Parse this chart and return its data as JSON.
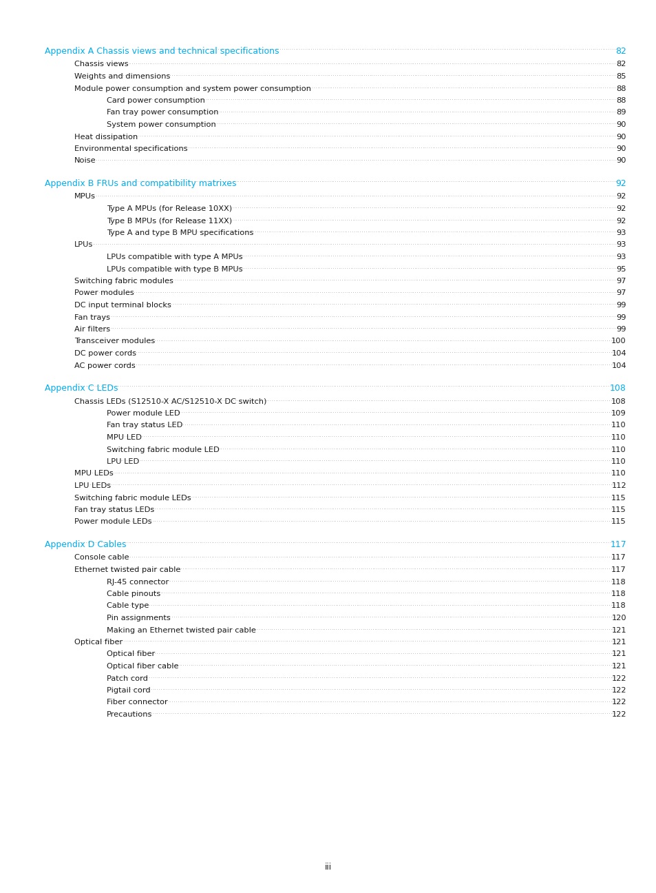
{
  "bg_color": "#ffffff",
  "text_color": "#1a1a1a",
  "heading_color": "#00aeef",
  "dot_color": "#555555",
  "page_footer": "iii",
  "entries": [
    {
      "text": "Appendix A Chassis views and technical specifications",
      "page": "82",
      "level": 0,
      "is_heading": true
    },
    {
      "text": "Chassis views",
      "page": "82",
      "level": 1,
      "is_heading": false
    },
    {
      "text": "Weights and dimensions",
      "page": "85",
      "level": 1,
      "is_heading": false
    },
    {
      "text": "Module power consumption and system power consumption",
      "page": "88",
      "level": 1,
      "is_heading": false
    },
    {
      "text": "Card power consumption",
      "page": "88",
      "level": 2,
      "is_heading": false
    },
    {
      "text": "Fan tray power consumption",
      "page": "89",
      "level": 2,
      "is_heading": false
    },
    {
      "text": "System power consumption",
      "page": "90",
      "level": 2,
      "is_heading": false
    },
    {
      "text": "Heat dissipation",
      "page": "90",
      "level": 1,
      "is_heading": false
    },
    {
      "text": "Environmental specifications",
      "page": "90",
      "level": 1,
      "is_heading": false
    },
    {
      "text": "Noise",
      "page": "90",
      "level": 1,
      "is_heading": false
    },
    {
      "text": "",
      "page": "",
      "level": -1,
      "is_heading": false
    },
    {
      "text": "Appendix B FRUs and compatibility matrixes",
      "page": "92",
      "level": 0,
      "is_heading": true
    },
    {
      "text": "MPUs",
      "page": "92",
      "level": 1,
      "is_heading": false
    },
    {
      "text": "Type A MPUs (for Release 10XX)",
      "page": "92",
      "level": 2,
      "is_heading": false
    },
    {
      "text": "Type B MPUs (for Release 11XX)",
      "page": "92",
      "level": 2,
      "is_heading": false
    },
    {
      "text": "Type A and type B MPU specifications",
      "page": "93",
      "level": 2,
      "is_heading": false
    },
    {
      "text": "LPUs",
      "page": "93",
      "level": 1,
      "is_heading": false
    },
    {
      "text": "LPUs compatible with type A MPUs",
      "page": "93",
      "level": 2,
      "is_heading": false
    },
    {
      "text": "LPUs compatible with type B MPUs",
      "page": "95",
      "level": 2,
      "is_heading": false
    },
    {
      "text": "Switching fabric modules",
      "page": "97",
      "level": 1,
      "is_heading": false
    },
    {
      "text": "Power modules",
      "page": "97",
      "level": 1,
      "is_heading": false
    },
    {
      "text": "DC input terminal blocks",
      "page": "99",
      "level": 1,
      "is_heading": false
    },
    {
      "text": "Fan trays",
      "page": "99",
      "level": 1,
      "is_heading": false
    },
    {
      "text": "Air filters",
      "page": "99",
      "level": 1,
      "is_heading": false
    },
    {
      "text": "Transceiver modules",
      "page": "100",
      "level": 1,
      "is_heading": false
    },
    {
      "text": "DC power cords",
      "page": "104",
      "level": 1,
      "is_heading": false
    },
    {
      "text": "AC power cords",
      "page": "104",
      "level": 1,
      "is_heading": false
    },
    {
      "text": "",
      "page": "",
      "level": -1,
      "is_heading": false
    },
    {
      "text": "Appendix C LEDs",
      "page": "108",
      "level": 0,
      "is_heading": true
    },
    {
      "text": "Chassis LEDs (S12510-X AC/S12510-X DC switch)",
      "page": "108",
      "level": 1,
      "is_heading": false
    },
    {
      "text": "Power module LED",
      "page": "109",
      "level": 2,
      "is_heading": false
    },
    {
      "text": "Fan tray status LED",
      "page": "110",
      "level": 2,
      "is_heading": false
    },
    {
      "text": "MPU LED",
      "page": "110",
      "level": 2,
      "is_heading": false
    },
    {
      "text": "Switching fabric module LED",
      "page": "110",
      "level": 2,
      "is_heading": false
    },
    {
      "text": "LPU LED",
      "page": "110",
      "level": 2,
      "is_heading": false
    },
    {
      "text": "MPU LEDs",
      "page": "110",
      "level": 1,
      "is_heading": false
    },
    {
      "text": "LPU LEDs",
      "page": "112",
      "level": 1,
      "is_heading": false
    },
    {
      "text": "Switching fabric module LEDs",
      "page": "115",
      "level": 1,
      "is_heading": false
    },
    {
      "text": "Fan tray status LEDs",
      "page": "115",
      "level": 1,
      "is_heading": false
    },
    {
      "text": "Power module LEDs",
      "page": "115",
      "level": 1,
      "is_heading": false
    },
    {
      "text": "",
      "page": "",
      "level": -1,
      "is_heading": false
    },
    {
      "text": "Appendix D Cables",
      "page": "117",
      "level": 0,
      "is_heading": true
    },
    {
      "text": "Console cable",
      "page": "117",
      "level": 1,
      "is_heading": false
    },
    {
      "text": "Ethernet twisted pair cable",
      "page": "117",
      "level": 1,
      "is_heading": false
    },
    {
      "text": "RJ-45 connector",
      "page": "118",
      "level": 2,
      "is_heading": false
    },
    {
      "text": "Cable pinouts",
      "page": "118",
      "level": 2,
      "is_heading": false
    },
    {
      "text": "Cable type",
      "page": "118",
      "level": 2,
      "is_heading": false
    },
    {
      "text": "Pin assignments",
      "page": "120",
      "level": 2,
      "is_heading": false
    },
    {
      "text": "Making an Ethernet twisted pair cable",
      "page": "121",
      "level": 2,
      "is_heading": false
    },
    {
      "text": "Optical fiber",
      "page": "121",
      "level": 1,
      "is_heading": false
    },
    {
      "text": "Optical fiber",
      "page": "121",
      "level": 2,
      "is_heading": false
    },
    {
      "text": "Optical fiber cable",
      "page": "121",
      "level": 2,
      "is_heading": false
    },
    {
      "text": "Patch cord",
      "page": "122",
      "level": 2,
      "is_heading": false
    },
    {
      "text": "Pigtail cord",
      "page": "122",
      "level": 2,
      "is_heading": false
    },
    {
      "text": "Fiber connector",
      "page": "122",
      "level": 2,
      "is_heading": false
    },
    {
      "text": "Precautions",
      "page": "122",
      "level": 2,
      "is_heading": false
    }
  ]
}
